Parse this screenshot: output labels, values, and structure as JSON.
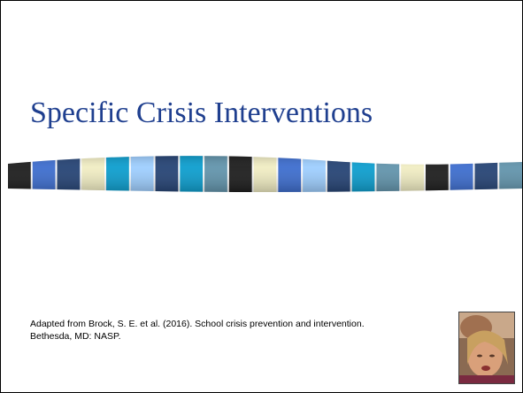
{
  "slide": {
    "title": "Specific Crisis Interventions",
    "citation": "Adapted from Brock, S. E. et al. (2016). School crisis prevention and intervention. Bethesda, MD: NASP."
  }
}
